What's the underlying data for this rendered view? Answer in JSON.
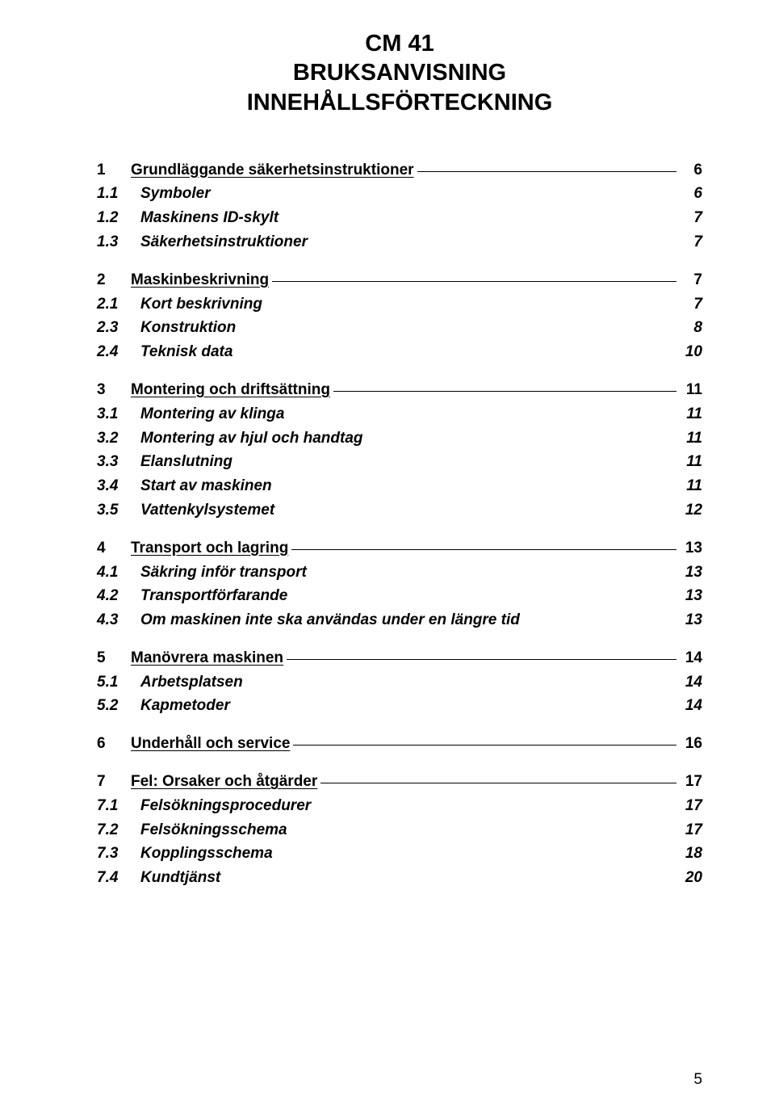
{
  "title_lines": [
    "CM 41",
    "BRUKSANVISNING",
    "INNEHÅLLSFÖRTECKNING"
  ],
  "toc": [
    {
      "num": "1",
      "label": "Grundläggande säkerhetsinstruktioner",
      "page": "6",
      "subs": [
        {
          "num": "1.1",
          "label": "Symboler",
          "page": "6"
        },
        {
          "num": "1.2",
          "label": "Maskinens ID-skylt",
          "page": "7"
        },
        {
          "num": "1.3",
          "label": "Säkerhetsinstruktioner",
          "page": "7"
        }
      ]
    },
    {
      "num": "2",
      "label": "Maskinbeskrivning",
      "page": "7",
      "subs": [
        {
          "num": "2.1",
          "label": "Kort beskrivning",
          "page": "7"
        },
        {
          "num": "2.3",
          "label": "Konstruktion",
          "page": "8"
        },
        {
          "num": "2.4",
          "label": "Teknisk data",
          "page": "10"
        }
      ]
    },
    {
      "num": "3",
      "label": "Montering och driftsättning",
      "page": "11",
      "subs": [
        {
          "num": "3.1",
          "label": "Montering av klinga",
          "page": "11"
        },
        {
          "num": "3.2",
          "label": "Montering av hjul och handtag",
          "page": "11"
        },
        {
          "num": "3.3",
          "label": "Elanslutning",
          "page": "11"
        },
        {
          "num": "3.4",
          "label": "Start av maskinen",
          "page": "11"
        },
        {
          "num": "3.5",
          "label": "Vattenkylsystemet",
          "page": "12"
        }
      ]
    },
    {
      "num": "4",
      "label": "Transport och lagring",
      "page": "13",
      "subs": [
        {
          "num": "4.1",
          "label": "Säkring inför transport",
          "page": "13"
        },
        {
          "num": "4.2",
          "label": "Transportförfarande",
          "page": "13"
        },
        {
          "num": "4.3",
          "label": "Om maskinen inte ska användas under en längre tid",
          "page": "13"
        }
      ]
    },
    {
      "num": "5",
      "label": "Manövrera maskinen",
      "page": "14",
      "subs": [
        {
          "num": "5.1",
          "label": "Arbetsplatsen",
          "page": "14"
        },
        {
          "num": "5.2",
          "label": "Kapmetoder",
          "page": "14"
        }
      ]
    },
    {
      "num": "6",
      "label": "Underhåll och service",
      "page": "16",
      "subs": []
    },
    {
      "num": "7",
      "label": "Fel: Orsaker och åtgärder",
      "page": "17",
      "subs": [
        {
          "num": "7.1",
          "label": "Felsökningsprocedurer",
          "page": "17"
        },
        {
          "num": "7.2",
          "label": "Felsökningsschema",
          "page": "17"
        },
        {
          "num": "7.3",
          "label": "Kopplingsschema",
          "page": "18"
        },
        {
          "num": "7.4",
          "label": "Kundtjänst",
          "page": "20"
        }
      ]
    }
  ],
  "footer_page": "5"
}
